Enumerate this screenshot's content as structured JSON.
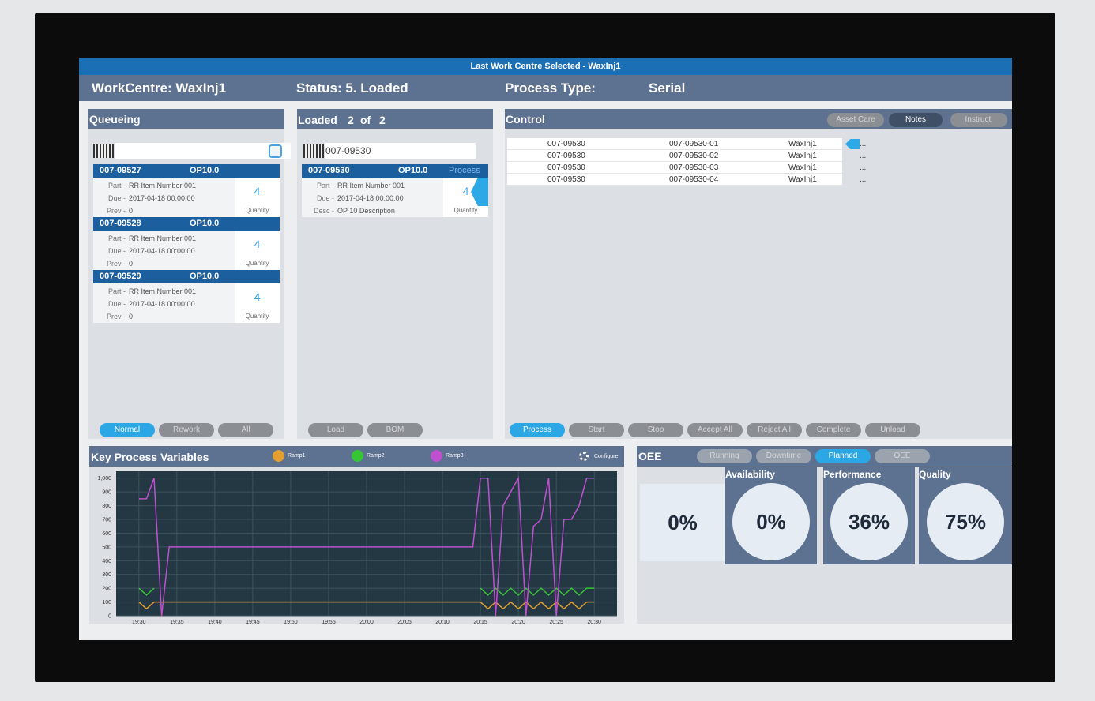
{
  "title_bar": "Last Work Centre Selected - WaxInj1",
  "header": {
    "workcentre": "WorkCentre: WaxInj1",
    "status": "Status: 5. Loaded",
    "process_type_label": "Process Type:",
    "process_type": "Serial"
  },
  "queueing": {
    "title": "Queueing",
    "items": [
      {
        "id": "007-09527",
        "op": "OP10.0",
        "fields": [
          [
            "Part -",
            "RR Item Number 001"
          ],
          [
            "Due -",
            "2017-04-18 00:00:00"
          ],
          [
            "Prev -",
            "0"
          ]
        ],
        "quantity": "4",
        "quantity_label": "Quantity"
      },
      {
        "id": "007-09528",
        "op": "OP10.0",
        "fields": [
          [
            "Part -",
            "RR Item Number 001"
          ],
          [
            "Due -",
            "2017-04-18 00:00:00"
          ],
          [
            "Prev -",
            "0"
          ]
        ],
        "quantity": "4",
        "quantity_label": "Quantity"
      },
      {
        "id": "007-09529",
        "op": "OP10.0",
        "fields": [
          [
            "Part -",
            "RR Item Number 001"
          ],
          [
            "Due -",
            "2017-04-18 00:00:00"
          ],
          [
            "Prev -",
            "0"
          ]
        ],
        "quantity": "4",
        "quantity_label": "Quantity"
      }
    ],
    "filters": [
      "Normal",
      "Rework",
      "All"
    ]
  },
  "loaded": {
    "title": "Loaded",
    "count": "2",
    "of": "of",
    "total": "2",
    "barcode": "007-09530",
    "items": [
      {
        "id": "007-09530",
        "op": "OP10.0",
        "status": "Process",
        "fields": [
          [
            "Part -",
            "RR Item Number 001"
          ],
          [
            "Due -",
            "2017-04-18 00:00:00"
          ],
          [
            "Desc -",
            "OP 10 Description"
          ]
        ],
        "quantity": "4",
        "quantity_label": "Quantity"
      }
    ],
    "buttons": [
      "Load",
      "BOM"
    ]
  },
  "control": {
    "title": "Control",
    "tools": [
      "Asset Care",
      "Notes",
      "Instructi"
    ],
    "rows": [
      [
        "007-09530",
        "007-09530-01",
        "WaxInj1",
        "..."
      ],
      [
        "007-09530",
        "007-09530-02",
        "WaxInj1",
        "..."
      ],
      [
        "007-09530",
        "007-09530-03",
        "WaxInj1",
        "..."
      ],
      [
        "007-09530",
        "007-09530-04",
        "WaxInj1",
        "..."
      ]
    ],
    "buttons": [
      "Process",
      "Start",
      "Stop",
      "Accept All",
      "Reject All",
      "Complete",
      "Unload"
    ]
  },
  "kpv": {
    "title": "Key Process Variables",
    "configure": "Configure"
  },
  "chart_data": {
    "type": "line",
    "x": [
      "19:30",
      "19:31",
      "19:32",
      "19:33",
      "19:34",
      "19:35",
      "20:14",
      "20:15",
      "20:16",
      "20:17",
      "20:18",
      "20:19",
      "20:20",
      "20:21",
      "20:22",
      "20:23",
      "20:24",
      "20:25",
      "20:26",
      "20:27",
      "20:28",
      "20:29",
      "20:30"
    ],
    "series": [
      {
        "name": "Ramp1",
        "color": "#e3a030",
        "values": [
          100,
          50,
          100,
          100,
          100,
          100,
          100,
          100,
          50,
          100,
          50,
          100,
          50,
          100,
          50,
          100,
          50,
          100,
          50,
          100,
          50,
          100,
          100
        ]
      },
      {
        "name": "Ramp2",
        "color": "#35c535",
        "values": [
          200,
          150,
          200,
          null,
          null,
          null,
          null,
          200,
          150,
          200,
          150,
          200,
          150,
          200,
          150,
          200,
          150,
          200,
          150,
          200,
          150,
          200,
          200
        ]
      },
      {
        "name": "Ramp3",
        "color": "#c050d0",
        "values": [
          850,
          850,
          1000,
          0,
          500,
          500,
          500,
          1000,
          1000,
          0,
          800,
          900,
          1000,
          0,
          650,
          700,
          1000,
          0,
          700,
          700,
          800,
          1000,
          1000
        ]
      }
    ],
    "xlim": [
      "19:27",
      "20:33"
    ],
    "xticks": [
      "19:30",
      "19:35",
      "19:40",
      "19:45",
      "19:50",
      "19:55",
      "20:00",
      "20:05",
      "20:10",
      "20:15",
      "20:20",
      "20:25",
      "20:30"
    ],
    "ylim": [
      0,
      1050
    ],
    "yticks": [
      0,
      100,
      200,
      300,
      400,
      500,
      600,
      700,
      800,
      900,
      {
        "value": 1000,
        "label": "1,000"
      }
    ],
    "grid": true
  },
  "oee": {
    "title": "OEE",
    "tabs": [
      "Running",
      "Downtime",
      "Planned",
      "OEE"
    ],
    "overall": "0%",
    "metrics": [
      {
        "name": "Availability",
        "value": "0%"
      },
      {
        "name": "Performance",
        "value": "36%"
      },
      {
        "name": "Quality",
        "value": "75%"
      }
    ]
  }
}
